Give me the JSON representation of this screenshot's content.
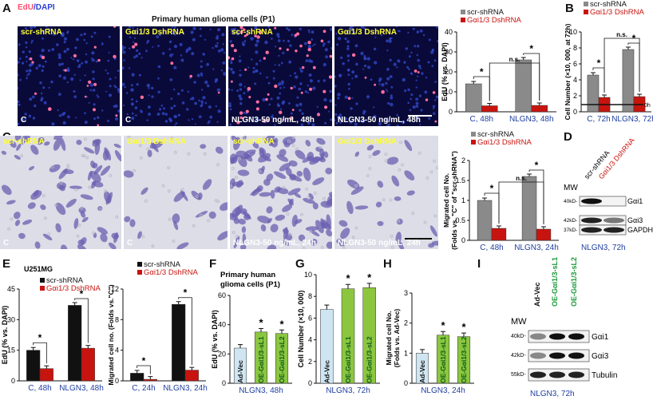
{
  "panel_labels": [
    "A",
    "B",
    "C",
    "D",
    "E",
    "F",
    "G",
    "H",
    "I"
  ],
  "panelA": {
    "legend_edu": "EdU",
    "legend_dapi": "/DAPI",
    "title": "Primary human glioma cells (P1)",
    "images": [
      {
        "caption": "scr-shRNA",
        "corner": "C"
      },
      {
        "caption": "Gαi1/3 DshRNA",
        "corner": "C"
      },
      {
        "caption": "scr-shRNA",
        "corner": "NLGN3-50 ng/mL, 48h"
      },
      {
        "caption": "Gαi1/3 DshRNA",
        "corner": "NLGN3-50 ng/mL, 48h"
      }
    ]
  },
  "panelC": {
    "images": [
      {
        "caption": "scr-shRNA",
        "corner": "C"
      },
      {
        "caption": "Gαi1/3 DshRNA",
        "corner": "C"
      },
      {
        "caption": "scr-shRNA",
        "corner": "NLGN3-50 ng/mL, 24h"
      },
      {
        "caption": "Gαi1/3 DshRNA",
        "corner": "NLGN3-50 ng/mL, 24h"
      }
    ]
  },
  "colors": {
    "gray": "#8a8a8a",
    "red": "#c8140f",
    "black": "#111111",
    "lightblue": "#cfe6f2",
    "green": "#8cc63f",
    "greentext": "#1a9a3a"
  },
  "chart_data": [
    {
      "id": "A-bar",
      "type": "bar",
      "ylabel": "EdU (% vs. DAPI)",
      "ylim": [
        0,
        40
      ],
      "yticks": [
        0,
        10,
        20,
        30,
        40
      ],
      "categories": [
        "C, 48h",
        "NLGN3, 48h"
      ],
      "series": [
        {
          "name": "scr-shRNA",
          "values": [
            14,
            26
          ]
        },
        {
          "name": "Gαi1/3 DshRNA",
          "values": [
            3,
            3.2
          ]
        }
      ],
      "annotations": [
        "*",
        "*",
        "n.s."
      ]
    },
    {
      "id": "B-bar",
      "type": "bar",
      "ylabel": "Cell Number (×10, 000, at 72h)",
      "ylim": [
        0,
        10
      ],
      "yticks": [
        0,
        2,
        4,
        6,
        8,
        10
      ],
      "categories": [
        "C, 72h",
        "NLGN3, 72h"
      ],
      "series": [
        {
          "name": "scr-shRNA",
          "values": [
            4.6,
            7.8
          ]
        },
        {
          "name": "Gαi1/3 DshRNA",
          "values": [
            1.8,
            1.9
          ]
        }
      ],
      "reference_label": "0h",
      "annotations": [
        "*",
        "*",
        "n.s."
      ]
    },
    {
      "id": "C-bar",
      "type": "bar",
      "ylabel": "Migrated cell No.",
      "ylabel2": "(Folds vs. \"C\" of \"scr-shRNA\")",
      "ylim": [
        0,
        2
      ],
      "yticks": [
        0,
        0.5,
        1,
        1.5,
        2
      ],
      "categories": [
        "C, 48h",
        "NLGN3, 24h"
      ],
      "series": [
        {
          "name": "scr-shRNA",
          "values": [
            1.0,
            1.6
          ]
        },
        {
          "name": "Gαi1/3 DshRNA",
          "values": [
            0.3,
            0.28
          ]
        }
      ],
      "annotations": [
        "*",
        "*",
        "n.s."
      ]
    },
    {
      "id": "E1-bar",
      "type": "bar",
      "ylabel": "EdU (% vs. DAPI)",
      "ylim": [
        0,
        45
      ],
      "yticks": [
        0,
        15,
        30,
        45
      ],
      "title": "U251MG",
      "categories": [
        "C, 48h",
        "NLGN3, 48h"
      ],
      "series": [
        {
          "name": "scr-shRNA",
          "values": [
            15,
            37
          ]
        },
        {
          "name": "Gαi1/3 DshRNA",
          "values": [
            6,
            16
          ]
        }
      ],
      "annotations": [
        "*",
        "*"
      ]
    },
    {
      "id": "E2-bar",
      "type": "bar",
      "ylabel": "Migrated cell no. (Folds vs.\"C\")",
      "ylim": [
        0,
        12
      ],
      "yticks": [
        0,
        4,
        8,
        12
      ],
      "categories": [
        "C, 24h",
        "NLGN3, 24h"
      ],
      "series": [
        {
          "name": "scr-shRNA",
          "values": [
            1,
            10
          ]
        },
        {
          "name": "Gαi1/3 DshRNA",
          "values": [
            0.2,
            1.4
          ]
        }
      ],
      "annotations": [
        "*",
        "*"
      ]
    },
    {
      "id": "F-bar",
      "type": "bar",
      "ylabel": "EdU (% vs. DAPI)",
      "ylim": [
        0,
        60
      ],
      "yticks": [
        0,
        20,
        40,
        60
      ],
      "title": "Primary human glioma cells (P1)",
      "categories": [
        "Ad-Vec",
        "OE-Gαi1/3-sL1",
        "OE-Gαi1/3-sL2"
      ],
      "values": [
        24,
        35,
        34
      ],
      "xlabel": "NLGN3, 48h",
      "annotations": [
        "*",
        "*"
      ]
    },
    {
      "id": "G-bar",
      "type": "bar",
      "ylabel": "Cell Number (×10, 000)",
      "ylim": [
        0,
        10
      ],
      "yticks": [
        0,
        2,
        4,
        6,
        8,
        10
      ],
      "categories": [
        "Ad-Vec",
        "OE-Gαi1/3-sL1",
        "OE-Gαi1/3-sL2"
      ],
      "values": [
        6.8,
        8.7,
        8.8
      ],
      "xlabel": "NLGN3, 72h",
      "annotations": [
        "*",
        "*"
      ]
    },
    {
      "id": "H-bar",
      "type": "bar",
      "ylabel": "Migrated cell No.",
      "ylabel2": "(Folds vs. Ad-Vec)",
      "ylim": [
        0,
        3
      ],
      "yticks": [
        0,
        1,
        2,
        3
      ],
      "categories": [
        "Ad-Vec",
        "OE-Gαi1/3-sL1",
        "OE-Gαi1/3-sL2"
      ],
      "values": [
        1.0,
        1.6,
        1.55
      ],
      "xlabel": "NLGN3, 24h",
      "annotations": [
        "*",
        "*"
      ]
    }
  ],
  "panelD": {
    "lanes": [
      "scr-shRNA",
      "Gαi1/3 DshRNA"
    ],
    "mw": "MW",
    "bands": [
      {
        "kd": "40kD-",
        "name": "Gαi1"
      },
      {
        "kd": "42kD-",
        "name": "Gαi3"
      },
      {
        "kd": "37kD-",
        "name": "GAPDH"
      }
    ],
    "footer": "NLGN3, 72h"
  },
  "panelI": {
    "lanes": [
      "Ad-Vec",
      "OE-Gαi1/3-sL1",
      "OE-Gαi1/3-sL2"
    ],
    "mw": "MW",
    "bands": [
      {
        "kd": "40kD-",
        "name": "Gαi1"
      },
      {
        "kd": "42kD-",
        "name": "Gαi3"
      },
      {
        "kd": "55kD-",
        "name": "Tubulin"
      }
    ],
    "footer": "NLGN3, 72h"
  }
}
